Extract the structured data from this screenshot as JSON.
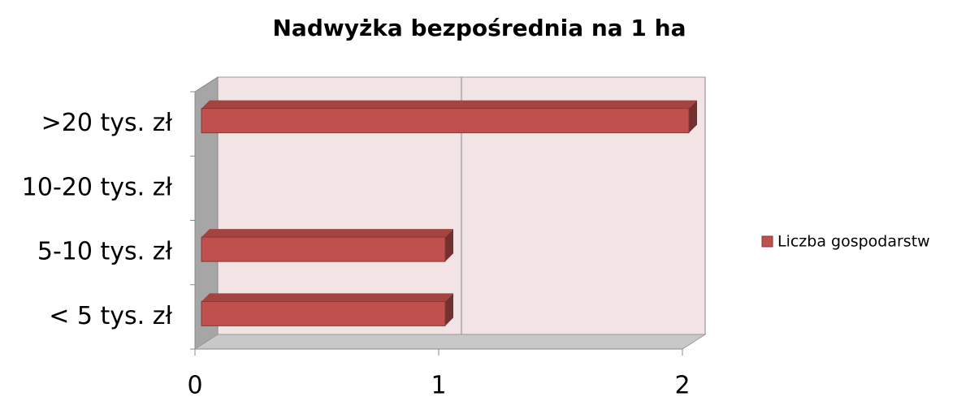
{
  "chart_data": {
    "type": "bar",
    "orientation": "horizontal",
    "title": "Nadwyżka bezpośrednia na 1 ha",
    "categories": [
      "< 5 tys. zł",
      "5-10 tys. zł",
      "10-20 tys. zł",
      ">20 tys. zł"
    ],
    "series": [
      {
        "name": "Liczba gospodarstw",
        "color": "#c0504d",
        "values": [
          1,
          1,
          0,
          2
        ]
      }
    ],
    "xlim": [
      0,
      2
    ],
    "xticks": [
      0,
      1,
      2
    ],
    "grid": true,
    "legend": "right"
  }
}
